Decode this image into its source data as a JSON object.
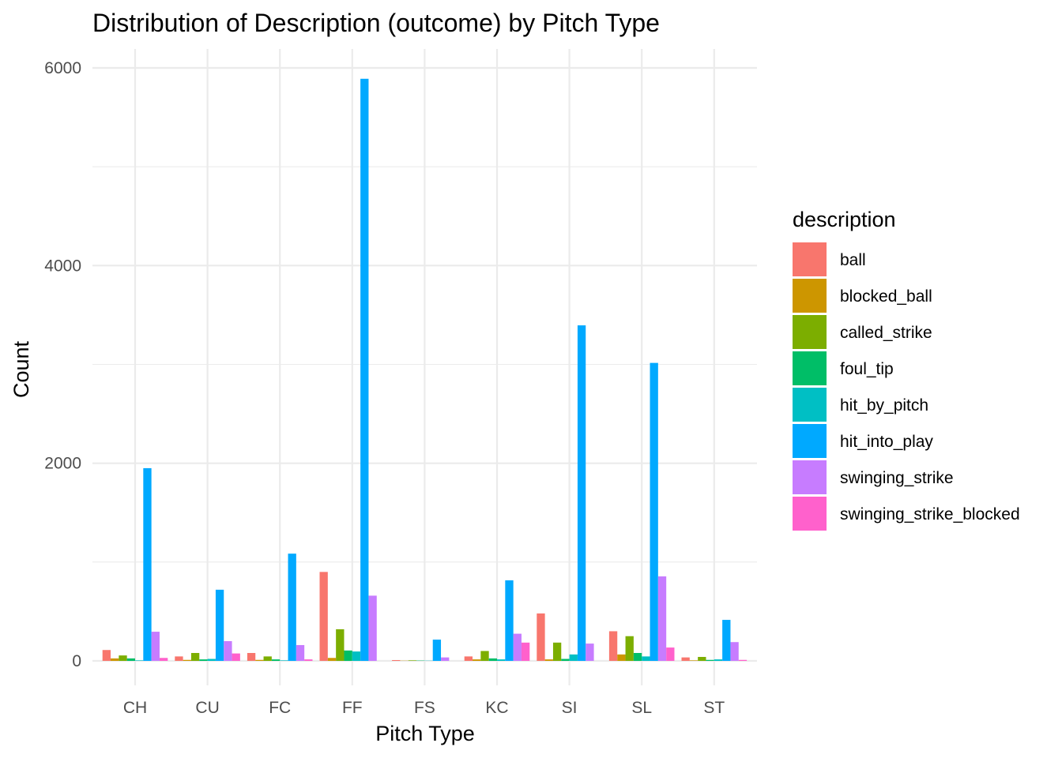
{
  "chart_data": {
    "type": "bar",
    "title": "Distribution of Description (outcome) by Pitch Type",
    "xlabel": "Pitch Type",
    "ylabel": "Count",
    "ylim": [
      -250,
      6200
    ],
    "yticks": [
      0,
      2000,
      4000,
      6000
    ],
    "y_minor_ticks": [
      1000,
      3000,
      5000
    ],
    "grid": true,
    "legend_title": "description",
    "legend_position": "right",
    "categories": [
      "CH",
      "CU",
      "FC",
      "FF",
      "FS",
      "KC",
      "SI",
      "SL",
      "ST"
    ],
    "series": [
      {
        "name": "ball",
        "color": "#F8766D",
        "values": [
          110,
          45,
          80,
          900,
          8,
          45,
          480,
          300,
          35
        ]
      },
      {
        "name": "blocked_ball",
        "color": "#CD9600",
        "values": [
          25,
          10,
          10,
          30,
          2,
          15,
          15,
          65,
          5
        ]
      },
      {
        "name": "called_strike",
        "color": "#7CAE00",
        "values": [
          55,
          80,
          45,
          320,
          5,
          100,
          185,
          250,
          40
        ]
      },
      {
        "name": "foul_tip",
        "color": "#00BE67",
        "values": [
          25,
          15,
          15,
          105,
          3,
          25,
          20,
          80,
          10
        ]
      },
      {
        "name": "hit_by_pitch",
        "color": "#00BFC4",
        "values": [
          5,
          20,
          5,
          95,
          2,
          15,
          65,
          45,
          15
        ]
      },
      {
        "name": "hit_into_play",
        "color": "#00A9FF",
        "values": [
          1950,
          720,
          1085,
          5890,
          215,
          815,
          3395,
          3015,
          415
        ]
      },
      {
        "name": "swinging_strike",
        "color": "#C77CFF",
        "values": [
          295,
          200,
          160,
          660,
          35,
          275,
          175,
          855,
          190
        ]
      },
      {
        "name": "swinging_strike_blocked",
        "color": "#FF61CC",
        "values": [
          30,
          75,
          15,
          0,
          0,
          185,
          0,
          135,
          10
        ]
      }
    ]
  }
}
